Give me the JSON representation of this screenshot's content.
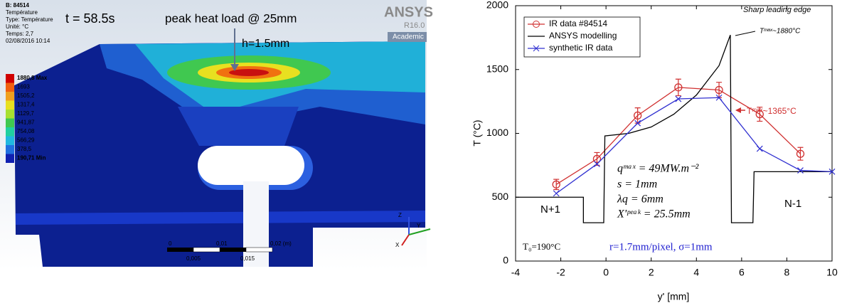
{
  "simulation": {
    "info": [
      "B: 84514",
      "Température",
      "Type: Température",
      "Unité: °C",
      "Temps: 2,7",
      "02/08/2016 10:14"
    ],
    "time": "t = 58.5s",
    "peak_label": "peak heat load @ 25mm",
    "height_label": "h=1.5mm",
    "brand": "ANSYS",
    "version": "R16.0",
    "edition": "Academic",
    "legend": [
      {
        "label": "1880,8 Max",
        "color": "#d00000"
      },
      {
        "label": "1693",
        "color": "#f06010"
      },
      {
        "label": "1505,2",
        "color": "#f0a020"
      },
      {
        "label": "1317,4",
        "color": "#e8e020"
      },
      {
        "label": "1129,7",
        "color": "#a8e030"
      },
      {
        "label": "941,87",
        "color": "#40c850"
      },
      {
        "label": "754,08",
        "color": "#20d0a0"
      },
      {
        "label": "566,29",
        "color": "#20b8e0"
      },
      {
        "label": "378,5",
        "color": "#2070e0"
      },
      {
        "label": "190,71 Min",
        "color": "#1020b0"
      }
    ],
    "scale_top": [
      "0",
      "0,01",
      "0,02 (m)"
    ],
    "scale_bottom": [
      "0,005",
      "0,015"
    ],
    "axes": [
      "Z",
      "Y",
      "X"
    ]
  },
  "chart_data": {
    "type": "line",
    "xlabel": "y' [mm]",
    "ylabel": "T (°C)",
    "xlim": [
      -4,
      10
    ],
    "xticks": [
      -4,
      -2,
      0,
      2,
      4,
      6,
      8,
      10
    ],
    "ylim": [
      0,
      2000
    ],
    "yticks": [
      0,
      500,
      1000,
      1500,
      2000
    ],
    "series": [
      {
        "name": "IR data #84514",
        "color": "#d03030",
        "marker": "circle",
        "x": [
          -2.2,
          -0.4,
          1.4,
          3.2,
          5.0,
          6.8,
          8.6
        ],
        "values": [
          600,
          800,
          1140,
          1360,
          1340,
          1150,
          840
        ],
        "errors": [
          40,
          50,
          60,
          65,
          60,
          55,
          50
        ]
      },
      {
        "name": "ANSYS modelling",
        "color": "#000000",
        "marker": "none",
        "x": [
          -4,
          -1,
          -1,
          -0.1,
          -0.05,
          1,
          2,
          3,
          4,
          5,
          5.5,
          5.55,
          6.5,
          6.55,
          10
        ],
        "values": [
          500,
          500,
          300,
          300,
          980,
          1000,
          1050,
          1150,
          1300,
          1530,
          1770,
          300,
          300,
          700,
          700
        ]
      },
      {
        "name": "synthetic IR data",
        "color": "#3030d0",
        "marker": "x",
        "x": [
          -2.2,
          -0.4,
          1.4,
          3.2,
          5.0,
          6.8,
          8.6,
          10
        ],
        "values": [
          530,
          760,
          1080,
          1270,
          1280,
          880,
          710,
          700
        ]
      }
    ],
    "annotations": [
      "Sharp leading edge",
      "Tᵐᵃˣ~1880°C",
      "Tᵐᵃˣ~1365°C",
      "N+1",
      "N-1",
      "qᵐᵃˣ = 49MW.m⁻²",
      "s = 1mm",
      "λq = 6mm",
      "X'ᵖᵉᵃᵏ = 25.5mm",
      "T₀=190°C",
      "r=1.7mm/pixel, σ=1mm"
    ]
  }
}
